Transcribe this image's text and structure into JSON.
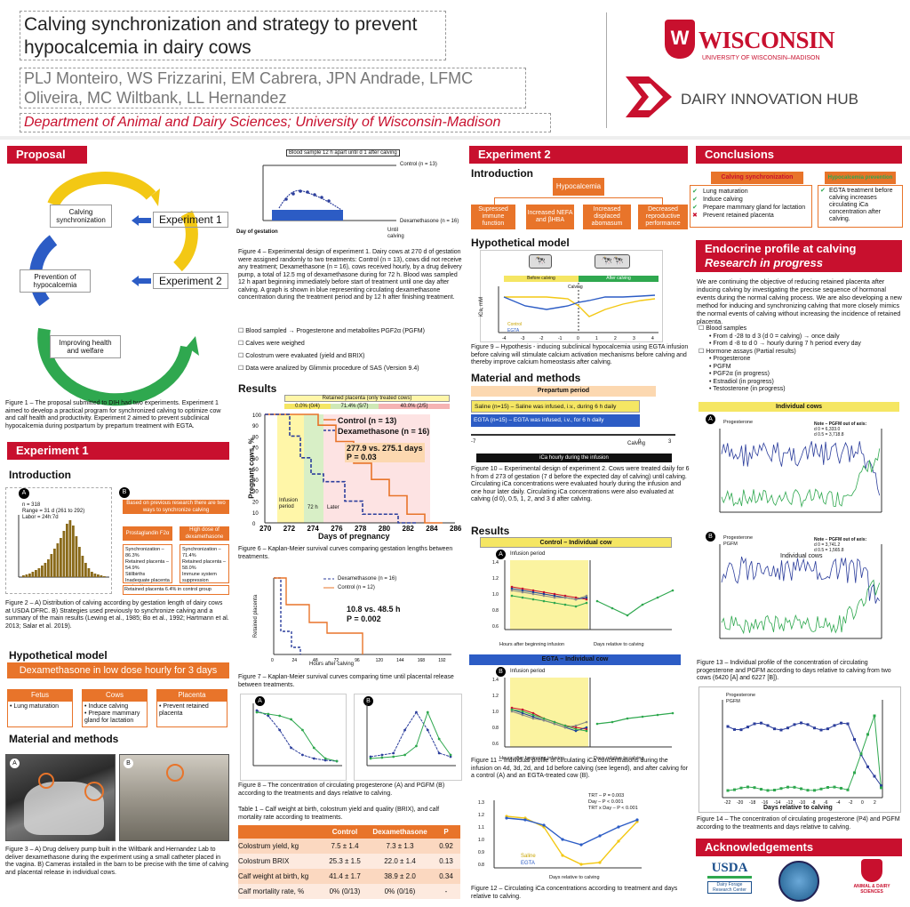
{
  "title": "Calving synchronization and strategy to prevent hypocalcemia in dairy cows",
  "title_l1": "Calving synchronization and strategy to prevent",
  "title_l2": "hypocalcemia in dairy cows",
  "authors_l1": "PLJ Monteiro, WS Frizzarini, EM Cabrera, JPN Andrade, LFMC",
  "authors_l2": "Oliveira, MC Wiltbank, LL Hernandez",
  "dept": "Department of Animal and Dairy Sciences; University of Wisconsin-Madison",
  "logo_uw": "WISCONSIN",
  "logo_uw_sub": "UNIVERSITY OF WISCONSIN–MADISON",
  "logo_dih": "DAIRY INNOVATION HUB",
  "colors": {
    "brand_red": "#c8102e",
    "orange": "#e8742a",
    "blue": "#2c3e9c",
    "green": "#2fa84f",
    "yellow": "#f5e663"
  },
  "proposal": {
    "heading": "Proposal",
    "c1": "Calving synchronization",
    "c2": "Prevention of hypocalcemia",
    "c3": "Improving health and welfare",
    "exp1": "Experiment 1",
    "exp2": "Experiment 2",
    "caption": "Figure 1 – The proposal submitted to DIH had two experiments. Experiment 1 aimed to develop a practical program for synchronized calving to optimize cow and calf health and productivity. Experiment 2 aimed to prevent subclinical hypocalcemia during postpartum by prepartum treatment with EGTA."
  },
  "exp1": {
    "heading": "Experiment 1",
    "intro": "Introduction",
    "histo_stats": [
      "n = 318",
      "Range = 31 d (261 to 292)",
      "Labor = 24h:7d"
    ],
    "strategy_head": "Based on previous research there are two ways to synchronize calving",
    "pgf_head": "Prostaglandin F2α",
    "dex_head": "High dose of dexamethasone",
    "pgf_items": [
      "Synchronization – 86.3%",
      "Retained placenta – 54.9%",
      "Stillbirths",
      "Inadequate placenta maturation"
    ],
    "dex_items": [
      "Synchronization – 71.4%",
      "Retained placenta – 58.0%",
      "Immune system suppression"
    ],
    "rp_ctrl": "Retained placenta 6.4% in control group",
    "fig2": "Figure 2 – A) Distribution of calving according by gestation length of dairy cows at USDA DFRC. B) Strategies used previously to synchronize calving and a summary of the main results (Lewing et al., 1985; Bo et al., 1992; Hartmann et al. 2013; Salar et al. 2019).",
    "hyp": "Hypothetical model",
    "hyp_banner": "Dexamethasone in low dose hourly for 3 days",
    "fetus": "Fetus",
    "cows": "Cows",
    "placenta": "Placenta",
    "fetus_items": [
      "Lung maturation"
    ],
    "cows_items": [
      "Induce calving",
      "Prepare mammary gland for lactation"
    ],
    "placenta_items": [
      "Prevent retained placenta"
    ],
    "mm": "Material and methods",
    "fig3": "Figure 3 – A) Drug delivery pump built in the Wiltbank and Hernandez Lab to deliver dexamethasone during the experiment using a small catheter placed in the vagina. B) Cameras installed in the barn to be precise with the time of calving and placental release in individual cows."
  },
  "fig4": {
    "blood": "Blood sample 12 h apart until d 1 after calving",
    "control": "Control (n = 13)",
    "dex": "Dexamethasone (n = 16)",
    "gest": "Day of gestation",
    "until": "Until calving",
    "caption": "Figure 4 – Experimental design of experiment 1. Dairy cows at 270 d of gestation were assigned randomly to two treatments: Control (n = 13), cows did not receive any treatment; Dexamethasone (n = 16), cows received hourly, by a drug delivery pump, a total of 12.5 mg of dexamethasone during for 72 h. Blood was sampled 12 h apart beginning immediately before start of treatment until one day after calving. A graph is shown in blue representing circulating dexamethasone concentration during the treatment period and by 12 h after finishing treatment."
  },
  "bullets1": [
    "Blood sampled → Progesterone and metabolites PGF2α (PGFM)",
    "Calves were weighed",
    "Colostrum were evaluated (yield and BRIX)",
    "Data were analized by Glimmix procedure of SAS (Version 9.4)"
  ],
  "results1": "Results",
  "fig6": {
    "rp_head": "Retained placenta (only treated cows)",
    "rp_vals": [
      "0.0% (0/4)",
      "71.4% (5/7)",
      "40.0% (2/5)"
    ],
    "control": "Control (n = 13)",
    "dex": "Dexamethasone (n = 16)",
    "stat": "277.9 vs. 275.1 days",
    "p": "P = 0.03",
    "periods": [
      "Infusion period",
      "72 h",
      "Later"
    ],
    "ylabel": "Pregnant cows, %",
    "xlabel": "Days of pregnancy",
    "caption": "Figure 6 – Kaplan-Meier survival curves comparing gestation lengths between treatments."
  },
  "fig7": {
    "dex": "Dexamethasone (n = 16)",
    "control": "Control (n = 12)",
    "stat": "10.8 vs. 48.5 h",
    "p": "P = 0.002",
    "ylabel": "Retained placenta",
    "xlabel": "Hours after calving",
    "caption": "Figure 7 – Kaplan-Meier survival curves comparing time until placental release between treatments."
  },
  "fig8": {
    "caption": "Figure 8 – The concentration of circulating progesterone (A) and PGFM (B) according to the treatments and days relative to calving.",
    "xlabel": "Days relative to calving"
  },
  "table1": {
    "caption": "Table 1 – Calf weight at birth, colostrum yield and quality (BRIX), and calf mortality rate according to treatments.",
    "headers": [
      "",
      "Control",
      "Dexamethasone",
      "P"
    ],
    "rows": [
      [
        "Colostrum yield, kg",
        "7.5 ± 1.4",
        "7.3 ± 1.3",
        "0.92"
      ],
      [
        "Colostrum BRIX",
        "25.3 ± 1.5",
        "22.0 ± 1.4",
        "0.13"
      ],
      [
        "Calf weight at birth, kg",
        "41.4 ± 1.7",
        "38.9 ± 2.0",
        "0.34"
      ],
      [
        "Calf mortality rate, %",
        "0% (0/13)",
        "0% (0/16)",
        "-"
      ]
    ]
  },
  "exp2": {
    "heading": "Experiment 2",
    "intro": "Introduction",
    "hypocal": "Hypocalcemia",
    "effects": [
      "Supressed immune function",
      "Increased NEFA and βHBA",
      "Increased displaced abomasum",
      "Decreased reproductive performance"
    ],
    "hyp": "Hypothetical model",
    "before": "Before calving",
    "after": "After calving",
    "calving": "Calving",
    "ica": "iCa, mM",
    "ctrl": "Control",
    "egta": "EGTA",
    "fig9": "Figure 9 – Hypothesis - inducing subclinical hypocalcemia using EGTA infusion before calving will stimulate calcium activation mechanisms before calving and thereby improve calcium homeostasis after calving.",
    "mm": "Material and methods",
    "prepartum": "Prepartum period",
    "saline": "Saline (n=15) – Saline was infused, i.v., during 6 h daily",
    "egta_row": "EGTA (n=15) – EGTA was infused, i.v., for 6 h daily",
    "calving_lbl": "Calving",
    "ica_hourly": "iCa hourly during the infusion",
    "fig10": "Figure 10 – Experimental design of experiment 2. Cows were treated daily for 6 h from d 273 of gestation (7 d before the expected day of calving) until calving. Circulating iCa concentrations were evaluated hourly during the infusion and one hour later daily. Circulating iCa concentrations were also evaluated at calving (d 0), 0.5, 1, 2, and 3 d after calving.",
    "results": "Results",
    "ctrl_cow": "Control – Individual cow",
    "egta_cow": "EGTA – Individual cow",
    "infusion": "Infusion period",
    "x1": "Hours after beginning infusion",
    "x2": "Days relative to calving",
    "fig11": "Figure 11 – Individual profile of circulating iCa concentrations during the infusion on 4d, 3d, 2d, and 1d before calving (see legend), and after calving for a control (A) and an EGTA-treated cow (B).",
    "fig12_stats": [
      "TRT – P = 0.003",
      "Day – P < 0.001",
      "TRT x Day – P < 0.001"
    ],
    "saline_lbl": "Saline",
    "egta_lbl": "EGTA",
    "fig12": "Figure 12 – Circulating iCa concentrations according to treatment and days relative to calving."
  },
  "conclusions": {
    "heading": "Conclusions",
    "calv_sync": "Calving synchronization",
    "hypo_prev": "Hypocalcemia prevention",
    "items": [
      "Lung maturation",
      "Induce calving",
      "Prepare mammary gland for lactation",
      "Prevent retained placenta"
    ],
    "egta_text": "EGTA treatment before calving increases circulating iCa concentration after calving."
  },
  "endocrine": {
    "heading1": "Endocrine profile at calving",
    "heading2": "Research in progress",
    "text": "We are continuing the objective of reducing retained placenta after inducing calving by investigating the precise sequence of hormonal events during the normal calving process. We are also developing a new method for inducing and synchronizing calving that more closely mimics the normal events of calving without increasing the incidence of retained placenta.",
    "b1": "Blood samples",
    "b1_items": [
      "From d -28 to d 3 (d 0 = calving) → once daily",
      "From d -8 to d 0 → hourly during 7 h period every day"
    ],
    "b2": "Hormone assays (Partial results)",
    "b2_items": [
      "Progesterone",
      "PGFM",
      "PGF2α (in progress)",
      "Estradiol (in progress)",
      "Testosterone (in progress)"
    ],
    "indiv": "Individual cows",
    "p4": "Progesterone",
    "pgfm": "PGFM",
    "noteA": [
      "Note – PGFM out of axis:",
      "d 0 = 6,333.0",
      "d 0.5 = 3,718.8"
    ],
    "noteB": [
      "Note – PGFM out of axis:",
      "d 0 = 3,741.2",
      "d 0.5 = 1,565.8"
    ],
    "fig13": "Figure 13 – Individual profile of the concentration of circulating progesterone and PGFM according to days relative to calving from two cows (6420 [A] and 6227 [B]).",
    "fig14_x": "Days relative to calving",
    "fig14": "Figure 14 – The concentration of circulating progesterone (P4) and PGFM according to the treatments and days relative to calving."
  },
  "ack": {
    "heading": "Acknowledgements",
    "usda": "USDA",
    "dfrc": "Dairy Forage Research Center",
    "sigma": "ANIMAL & DAIRY SCIENCES"
  }
}
